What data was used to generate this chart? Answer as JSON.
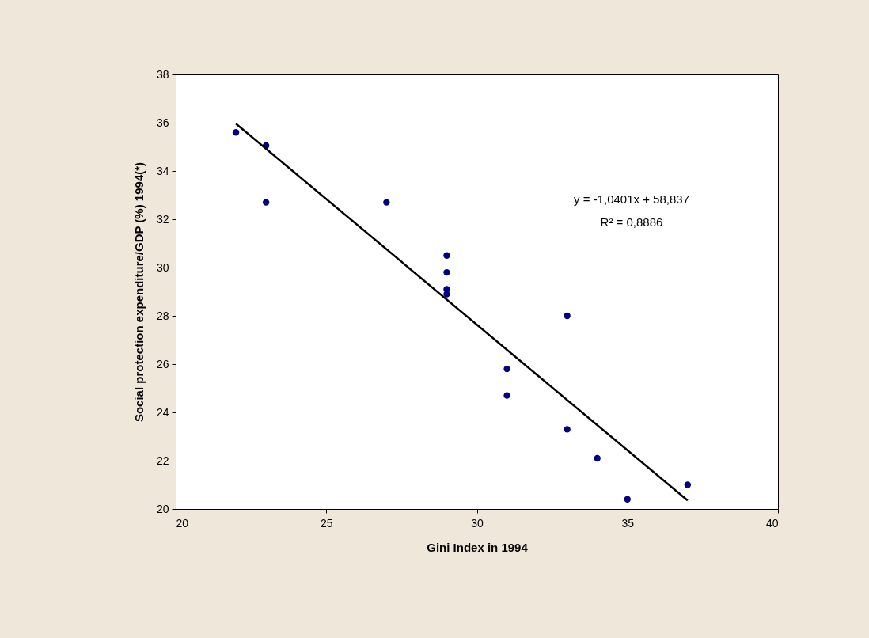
{
  "chart_data": {
    "type": "scatter",
    "xlabel": "Gini Index in 1994",
    "ylabel": "Social protection expenditure/GDP (%) 1994(*)",
    "series": [
      {
        "color": "#000080",
        "marker": "circle",
        "x": [
          22,
          23,
          23,
          27,
          29,
          29,
          29,
          29,
          33,
          31,
          31,
          33,
          34,
          35,
          37
        ],
        "values": [
          35.6,
          35.05,
          32.7,
          32.7,
          30.5,
          29.8,
          29.1,
          28.9,
          28.0,
          25.8,
          24.7,
          23.3,
          22.1,
          20.4,
          21.0
        ]
      },
      {
        "type": "line",
        "color": "#000000",
        "x": [
          22,
          37
        ],
        "values": [
          35.96,
          20.35
        ],
        "marker": "none"
      }
    ],
    "annotations": [
      "y = -1,0401x + 58,837",
      "R² = 0,8886"
    ],
    "xlim": [
      20,
      40
    ],
    "xticks": [
      20,
      25,
      30,
      35,
      40
    ],
    "ylim": [
      20,
      38
    ],
    "yticks": [
      20,
      22,
      24,
      26,
      28,
      30,
      32,
      34,
      36,
      38
    ],
    "grid": false
  }
}
